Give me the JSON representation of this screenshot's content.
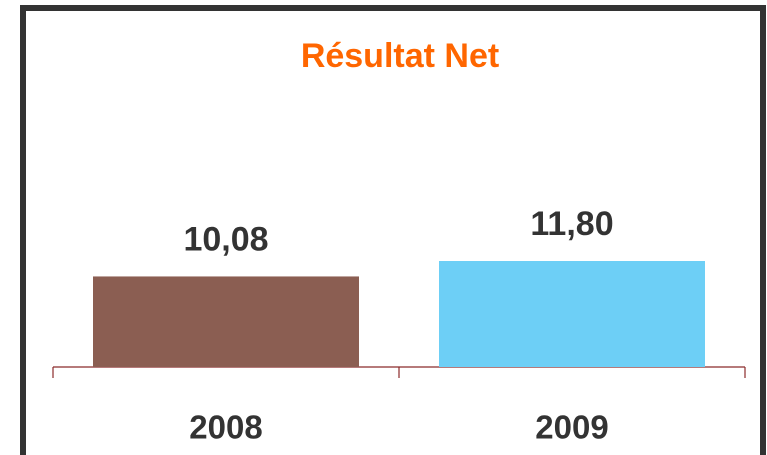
{
  "chart_data": {
    "type": "bar",
    "title": "Résultat Net",
    "categories": [
      "2008",
      "2009"
    ],
    "values": [
      10.08,
      11.8
    ],
    "value_labels": [
      "10,08",
      "11,80"
    ],
    "colors": [
      "#8b5e52",
      "#6dcff6"
    ]
  }
}
